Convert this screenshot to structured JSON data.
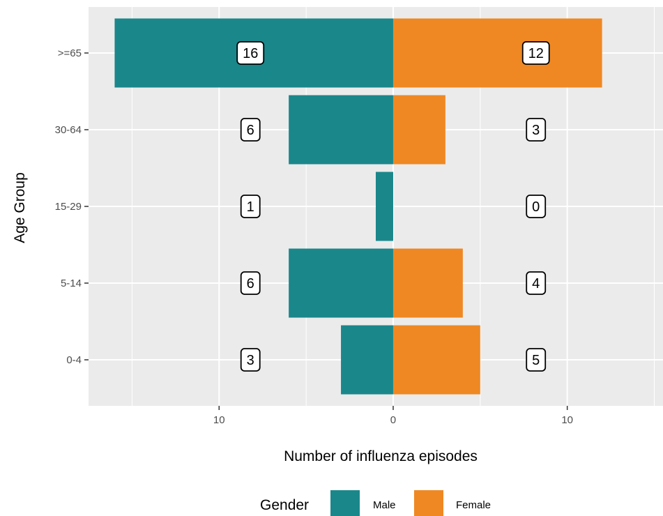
{
  "chart_data": {
    "type": "bar",
    "orientation": "horizontal",
    "layout": "population-pyramid",
    "categories": [
      "0-4",
      "5-14",
      "15-29",
      "30-64",
      ">=65"
    ],
    "series": [
      {
        "name": "Male",
        "values": [
          3,
          6,
          1,
          6,
          16
        ],
        "color": "#1a878b",
        "direction": "negative"
      },
      {
        "name": "Female",
        "values": [
          5,
          4,
          0,
          3,
          12
        ],
        "color": "#ef8822",
        "direction": "positive"
      }
    ],
    "xlabel": "Number of influenza episodes",
    "ylabel": "Age Group",
    "xlim": [
      -17.5,
      15.5
    ],
    "x_ticks": [
      -10,
      0,
      10
    ],
    "x_tick_labels": [
      "10",
      "0",
      "10"
    ],
    "legend": {
      "title": "Gender",
      "position": "bottom"
    },
    "data_label_positions": {
      "Male": -8.2,
      "Female": 8.2
    },
    "panel_background": "#ebebeb",
    "grid_color": "#ffffff",
    "grid": true
  }
}
